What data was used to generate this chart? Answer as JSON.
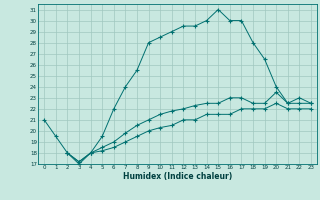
{
  "xlabel": "Humidex (Indice chaleur)",
  "background_color": "#c8e8e0",
  "grid_color": "#a0c8c0",
  "line_color": "#007070",
  "xlim": [
    -0.5,
    23.5
  ],
  "ylim": [
    17,
    31.5
  ],
  "yticks": [
    17,
    18,
    19,
    20,
    21,
    22,
    23,
    24,
    25,
    26,
    27,
    28,
    29,
    30,
    31
  ],
  "xticks": [
    0,
    1,
    2,
    3,
    4,
    5,
    6,
    7,
    8,
    9,
    10,
    11,
    12,
    13,
    14,
    15,
    16,
    17,
    18,
    19,
    20,
    21,
    22,
    23
  ],
  "line1": {
    "x": [
      0,
      1,
      2,
      3,
      4,
      5,
      6,
      7,
      8,
      9,
      10,
      11,
      12,
      13,
      14,
      15,
      16,
      17,
      18,
      19,
      20,
      21,
      22,
      23
    ],
    "y": [
      21,
      19.5,
      18,
      17,
      18,
      19.5,
      22,
      24,
      25.5,
      28,
      28.5,
      29,
      29.5,
      29.5,
      30,
      31,
      30.0,
      30.0,
      28,
      26.5,
      24,
      22.5,
      23,
      22.5
    ]
  },
  "line2": {
    "x": [
      2,
      3,
      4,
      5,
      6,
      7,
      8,
      9,
      10,
      11,
      12,
      13,
      14,
      15,
      16,
      17,
      18,
      19,
      20,
      21,
      22,
      23
    ],
    "y": [
      18,
      17.2,
      18,
      18.5,
      19,
      19.8,
      20.5,
      21,
      21.5,
      21.8,
      22,
      22.3,
      22.5,
      22.5,
      23.0,
      23.0,
      22.5,
      22.5,
      23.5,
      22.5,
      22.5,
      22.5
    ]
  },
  "line3": {
    "x": [
      2,
      3,
      4,
      5,
      6,
      7,
      8,
      9,
      10,
      11,
      12,
      13,
      14,
      15,
      16,
      17,
      18,
      19,
      20,
      21,
      22,
      23
    ],
    "y": [
      18,
      17.2,
      18,
      18.2,
      18.5,
      19,
      19.5,
      20,
      20.3,
      20.5,
      21,
      21,
      21.5,
      21.5,
      21.5,
      22,
      22,
      22,
      22.5,
      22,
      22,
      22
    ]
  }
}
